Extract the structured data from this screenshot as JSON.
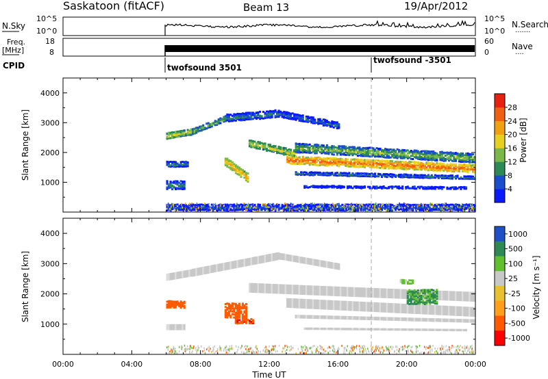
{
  "header": {
    "site": "Saskatoon (fitACF)",
    "beam": "Beam 13",
    "date": "19/Apr/2012"
  },
  "noise_panel": {
    "left_label": "N.Sky",
    "right_label": "N.Search",
    "right_legend": "·······",
    "left_ticks": [
      "10^5",
      "10^0"
    ],
    "right_ticks": [
      "10^5",
      "10^0"
    ]
  },
  "freq_panel": {
    "left_label_1": "Freq.",
    "left_label_2": "[MHz]",
    "right_label": "Nave",
    "right_legend": "····",
    "left_ticks": [
      "18",
      "8"
    ],
    "right_ticks": [
      "60",
      "0"
    ]
  },
  "cpid": {
    "label": "CPID",
    "segments": [
      {
        "start_hour": 6.0,
        "label": "twofsound 3501"
      },
      {
        "start_hour": 18.0,
        "label": "twofsound -3501"
      }
    ]
  },
  "colors": {
    "power": [
      "#0a1aff",
      "#1a4ecc",
      "#2e8a55",
      "#7ab84a",
      "#e8d020",
      "#f0a010",
      "#f06010",
      "#e82010"
    ],
    "velocity": [
      "#ff0000",
      "#ff5a00",
      "#ff9f1a",
      "#e8c030",
      "#c8c8c8",
      "#60c030",
      "#2e8a55",
      "#2050c8"
    ],
    "ground": "#c8c8c8"
  },
  "chart_data": [
    {
      "type": "heatmap",
      "name": "power",
      "xlabel": "",
      "ylabel": "Slant Range [km]",
      "xlim": [
        0,
        24
      ],
      "ylim": [
        0,
        4500
      ],
      "y_ticks": [
        "1000",
        "2000",
        "3000",
        "4000"
      ],
      "colorbar": {
        "label": "Power [dB]",
        "tick_labels": [
          "4",
          "8",
          "12",
          "16",
          "20",
          "24",
          "28"
        ],
        "range": [
          0,
          32
        ]
      },
      "bands": [
        {
          "t_start": 6.0,
          "t_end": 7.5,
          "r_from": 2550,
          "r_to": 2700,
          "thickness": 220,
          "value": 18
        },
        {
          "t_start": 7.5,
          "t_end": 9.5,
          "r_from": 2700,
          "r_to": 3150,
          "thickness": 200,
          "value": 14
        },
        {
          "t_start": 9.5,
          "t_end": 12.5,
          "r_from": 3150,
          "r_to": 3300,
          "thickness": 260,
          "value": 10
        },
        {
          "t_start": 12.5,
          "t_end": 16.0,
          "r_from": 3300,
          "r_to": 2900,
          "thickness": 220,
          "value": 8
        },
        {
          "t_start": 10.8,
          "t_end": 13.5,
          "r_from": 2300,
          "r_to": 1950,
          "thickness": 250,
          "value": 18
        },
        {
          "t_start": 13.5,
          "t_end": 24.0,
          "r_from": 2150,
          "r_to": 1800,
          "thickness": 320,
          "value": 14
        },
        {
          "t_start": 13.0,
          "t_end": 24.0,
          "r_from": 1750,
          "r_to": 1450,
          "thickness": 280,
          "value": 26
        },
        {
          "t_start": 13.5,
          "t_end": 24.0,
          "r_from": 1300,
          "r_to": 1150,
          "thickness": 120,
          "value": 9
        },
        {
          "t_start": 14.0,
          "t_end": 23.5,
          "r_from": 850,
          "r_to": 800,
          "thickness": 90,
          "value": 7
        },
        {
          "t_start": 9.4,
          "t_end": 10.7,
          "r_from": 1700,
          "r_to": 1150,
          "thickness": 300,
          "value": 22
        },
        {
          "t_start": 6.0,
          "t_end": 7.0,
          "r_from": 900,
          "r_to": 900,
          "thickness": 300,
          "value": 10
        },
        {
          "t_start": 6.0,
          "t_end": 7.2,
          "r_from": 1600,
          "r_to": 1600,
          "thickness": 200,
          "value": 9
        },
        {
          "t_start": 6.0,
          "t_end": 24.0,
          "r_from": 150,
          "r_to": 150,
          "thickness": 220,
          "value": 6
        }
      ]
    },
    {
      "type": "heatmap",
      "name": "velocity",
      "xlabel": "Time UT",
      "ylabel": "Slant Range [km]",
      "xlim": [
        0,
        24
      ],
      "ylim": [
        0,
        4500
      ],
      "x_ticks": [
        "00:00",
        "04:00",
        "08:00",
        "12:00",
        "16:00",
        "20:00",
        "00:00"
      ],
      "y_ticks": [
        "1000",
        "2000",
        "3000",
        "4000"
      ],
      "colorbar": {
        "label": "Velocity [m s⁻¹]",
        "tick_labels": [
          "1000",
          "500",
          "100",
          "25",
          "-25",
          "-100",
          "-500",
          "-1000"
        ]
      },
      "ground_bands": [
        {
          "t_start": 6.0,
          "t_end": 7.5,
          "r_from": 2550,
          "r_to": 2700,
          "thickness": 240
        },
        {
          "t_start": 7.5,
          "t_end": 12.5,
          "r_from": 2700,
          "r_to": 3250,
          "thickness": 260
        },
        {
          "t_start": 12.5,
          "t_end": 16.0,
          "r_from": 3250,
          "r_to": 2900,
          "thickness": 220
        },
        {
          "t_start": 10.8,
          "t_end": 24.0,
          "r_from": 2200,
          "r_to": 1900,
          "thickness": 320
        },
        {
          "t_start": 13.0,
          "t_end": 24.0,
          "r_from": 1700,
          "r_to": 1400,
          "thickness": 320
        },
        {
          "t_start": 6.0,
          "t_end": 7.0,
          "r_from": 900,
          "r_to": 900,
          "thickness": 200
        },
        {
          "t_start": 13.5,
          "t_end": 24.0,
          "r_from": 1250,
          "r_to": 1100,
          "thickness": 120
        },
        {
          "t_start": 14.0,
          "t_end": 23.5,
          "r_from": 850,
          "r_to": 800,
          "thickness": 80
        }
      ],
      "ionospheric_patches": [
        {
          "t_start": 6.0,
          "t_end": 7.0,
          "r_center": 1650,
          "height": 250,
          "value": -300
        },
        {
          "t_start": 9.4,
          "t_end": 10.6,
          "r_center": 1450,
          "height": 500,
          "value": -200
        },
        {
          "t_start": 10.0,
          "t_end": 11.0,
          "r_center": 1100,
          "height": 200,
          "value": -400
        },
        {
          "t_start": 20.0,
          "t_end": 21.8,
          "r_center": 1900,
          "height": 500,
          "value": 600
        },
        {
          "t_start": 19.6,
          "t_end": 20.4,
          "r_center": 2400,
          "height": 150,
          "value": 150
        }
      ]
    }
  ]
}
